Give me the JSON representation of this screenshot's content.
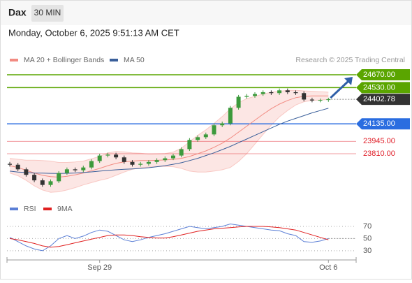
{
  "header": {
    "symbol": "Dax",
    "interval": "30 MIN",
    "timestamp": "Monday, October 6, 2025 9:51:13 AM CET"
  },
  "chart_data": {
    "type": "candlestick",
    "credit": "Research © 2025 Trading Central",
    "categories": [
      null,
      null,
      null,
      null,
      null,
      null,
      null,
      null,
      null,
      null,
      null,
      "Sep 29",
      null,
      null,
      null,
      null,
      null,
      null,
      null,
      null,
      null,
      null,
      null,
      null,
      null,
      null,
      null,
      null,
      null,
      null,
      null,
      null,
      null,
      null,
      null,
      null,
      null,
      null,
      null,
      "Oct 6"
    ],
    "open": [
      23700,
      23690,
      23640,
      23580,
      23520,
      23470,
      23510,
      23600,
      23640,
      23630,
      23660,
      23730,
      23790,
      23800,
      23770,
      23720,
      23690,
      23700,
      23720,
      23740,
      23760,
      23790,
      23860,
      23960,
      23990,
      24020,
      24120,
      24140,
      24310,
      24430,
      24440,
      24460,
      24480,
      24470,
      24500,
      24480,
      24470,
      24400,
      24390,
      24395
    ],
    "high": [
      23720,
      23710,
      23660,
      23600,
      23540,
      23530,
      23620,
      23660,
      23660,
      23680,
      23750,
      23810,
      23820,
      23820,
      23790,
      23740,
      23720,
      23740,
      23760,
      23780,
      23810,
      23880,
      23980,
      24010,
      24040,
      24140,
      24160,
      24330,
      24450,
      24460,
      24480,
      24500,
      24500,
      24520,
      24520,
      24500,
      24490,
      24420,
      24410,
      24420
    ],
    "low": [
      23670,
      23620,
      23560,
      23500,
      23450,
      23450,
      23490,
      23580,
      23610,
      23610,
      23640,
      23710,
      23770,
      23750,
      23700,
      23670,
      23670,
      23680,
      23700,
      23720,
      23740,
      23770,
      23840,
      23940,
      23970,
      24000,
      24100,
      24120,
      24290,
      24410,
      24420,
      24440,
      24450,
      24450,
      24460,
      24450,
      24380,
      24370,
      24370,
      24375
    ],
    "close": [
      23690,
      23640,
      23580,
      23520,
      23470,
      23510,
      23600,
      23640,
      23630,
      23660,
      23730,
      23790,
      23800,
      23770,
      23720,
      23690,
      23700,
      23720,
      23740,
      23760,
      23790,
      23860,
      23960,
      23990,
      24020,
      24120,
      24140,
      24310,
      24430,
      24440,
      24460,
      24480,
      24470,
      24500,
      24480,
      24470,
      24400,
      24390,
      24395,
      24403
    ],
    "up_color": "#3c9a3c",
    "down_color": "#333333",
    "series": [
      {
        "name": "MA 20 + Bollinger Bands",
        "color": "#f28b82",
        "values": [
          23680,
          23660,
          23630,
          23600,
          23575,
          23560,
          23555,
          23565,
          23580,
          23600,
          23625,
          23650,
          23680,
          23705,
          23720,
          23730,
          23735,
          23735,
          23738,
          23742,
          23748,
          23760,
          23780,
          23810,
          23840,
          23880,
          23925,
          23980,
          24045,
          24110,
          24175,
          24240,
          24300,
          24350,
          24390,
          24420,
          24435,
          24440,
          24440,
          24440
        ],
        "upper": [
          23760,
          23750,
          23740,
          23740,
          23735,
          23730,
          23715,
          23715,
          23720,
          23730,
          23755,
          23780,
          23820,
          23835,
          23830,
          23820,
          23815,
          23805,
          23808,
          23812,
          23828,
          23870,
          23940,
          24010,
          24070,
          24140,
          24215,
          24300,
          24365,
          24410,
          24435,
          24460,
          24480,
          24490,
          24500,
          24500,
          24495,
          24490,
          24485,
          24480
        ],
        "lower": [
          23600,
          23570,
          23520,
          23460,
          23415,
          23390,
          23395,
          23415,
          23440,
          23470,
          23495,
          23520,
          23540,
          23575,
          23610,
          23640,
          23655,
          23665,
          23668,
          23672,
          23668,
          23650,
          23620,
          23610,
          23610,
          23620,
          23635,
          23660,
          23725,
          23810,
          23915,
          24020,
          24120,
          24210,
          24280,
          24340,
          24375,
          24390,
          24395,
          24400
        ]
      },
      {
        "name": "MA 50",
        "color": "#3a5f9a",
        "values": [
          23620,
          23610,
          23605,
          23600,
          23598,
          23596,
          23595,
          23597,
          23600,
          23605,
          23612,
          23620,
          23628,
          23635,
          23640,
          23645,
          23650,
          23658,
          23668,
          23680,
          23695,
          23712,
          23735,
          23760,
          23790,
          23820,
          23855,
          23890,
          23930,
          23970,
          24010,
          24050,
          24090,
          24130,
          24165,
          24195,
          24225,
          24255,
          24280,
          24305
        ]
      }
    ],
    "levels": [
      {
        "value": 24670,
        "label": "24670.00",
        "color": "#5aa500",
        "style": "box"
      },
      {
        "value": 24530,
        "label": "24530.00",
        "color": "#5aa500",
        "style": "box"
      },
      {
        "value": 24402.78,
        "label": "24402.78",
        "color": "#333333",
        "style": "current"
      },
      {
        "value": 24135,
        "label": "24135.00",
        "color": "#2a6de0",
        "style": "box"
      },
      {
        "value": 23945,
        "label": "23945.00",
        "color": "#e0202a",
        "style": "text"
      },
      {
        "value": 23810,
        "label": "23810.00",
        "color": "#e0202a",
        "style": "text"
      }
    ],
    "ylim": [
      23338,
      24784
    ],
    "rsi": {
      "ylim": [
        15,
        86
      ],
      "yticks": [
        70,
        50,
        30
      ],
      "series": [
        {
          "name": "RSI",
          "color": "#5b7fd6",
          "values": [
            52,
            45,
            38,
            33,
            30,
            38,
            50,
            55,
            50,
            54,
            60,
            64,
            62,
            55,
            48,
            45,
            48,
            52,
            55,
            58,
            62,
            66,
            70,
            68,
            66,
            68,
            70,
            74,
            72,
            70,
            68,
            66,
            64,
            63,
            58,
            55,
            45,
            44,
            46,
            50
          ]
        },
        {
          "name": "9MA",
          "color": "#e02020",
          "values": [
            50,
            48,
            45,
            42,
            38,
            36,
            37,
            40,
            43,
            46,
            49,
            52,
            55,
            56,
            56,
            55,
            53,
            52,
            51,
            51,
            53,
            56,
            59,
            62,
            64,
            66,
            67,
            68,
            69,
            70,
            70,
            70,
            69,
            68,
            66,
            64,
            60,
            56,
            52,
            48
          ]
        }
      ]
    }
  }
}
